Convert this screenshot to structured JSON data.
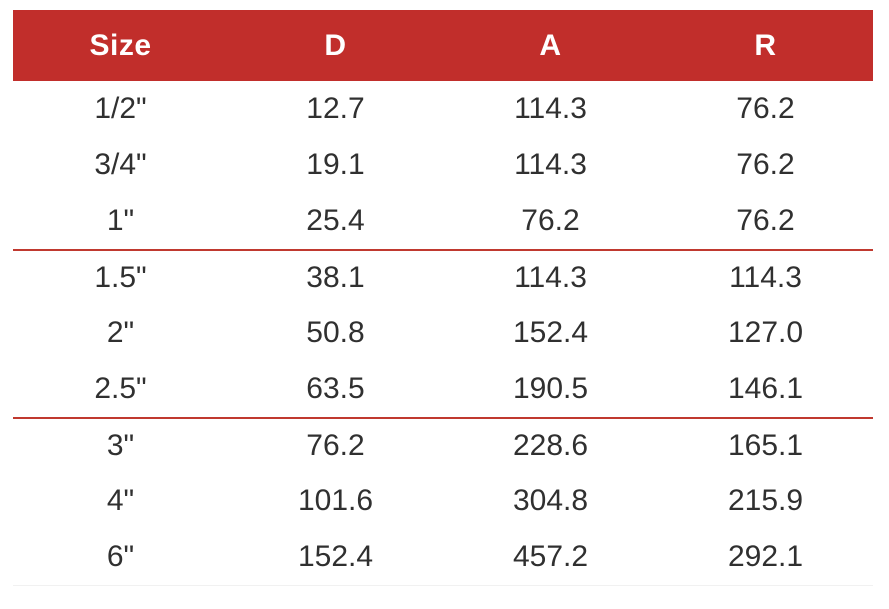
{
  "table": {
    "headers": [
      "Size",
      "D",
      "A",
      "R"
    ],
    "rows": [
      [
        "1/2\"",
        "12.7",
        "114.3",
        "76.2"
      ],
      [
        "3/4\"",
        "19.1",
        "114.3",
        "76.2"
      ],
      [
        "1\"",
        "25.4",
        "76.2",
        "76.2"
      ],
      [
        "1.5\"",
        "38.1",
        "114.3",
        "114.3"
      ],
      [
        "2\"",
        "50.8",
        "152.4",
        "127.0"
      ],
      [
        "2.5\"",
        "63.5",
        "190.5",
        "146.1"
      ],
      [
        "3\"",
        "76.2",
        "228.6",
        "165.1"
      ],
      [
        "4\"",
        "101.6",
        "304.8",
        "215.9"
      ],
      [
        "6\"",
        "152.4",
        "457.2",
        "292.1"
      ]
    ],
    "group_separators_after_rows": [
      3,
      6
    ]
  },
  "colors": {
    "header_bg": "#C12E2B",
    "header_text": "#FFFFFF",
    "body_text": "#303030",
    "separator": "#C0392F"
  },
  "chart_data": {
    "type": "table",
    "columns": [
      "Size",
      "D",
      "A",
      "R"
    ],
    "rows": [
      [
        "1/2\"",
        12.7,
        114.3,
        76.2
      ],
      [
        "3/4\"",
        19.1,
        114.3,
        76.2
      ],
      [
        "1\"",
        25.4,
        76.2,
        76.2
      ],
      [
        "1.5\"",
        38.1,
        114.3,
        114.3
      ],
      [
        "2\"",
        50.8,
        152.4,
        127.0
      ],
      [
        "2.5\"",
        63.5,
        190.5,
        146.1
      ],
      [
        "3\"",
        76.2,
        228.6,
        165.1
      ],
      [
        "4\"",
        101.6,
        304.8,
        215.9
      ],
      [
        "6\"",
        152.4,
        457.2,
        292.1
      ]
    ],
    "title": ""
  }
}
